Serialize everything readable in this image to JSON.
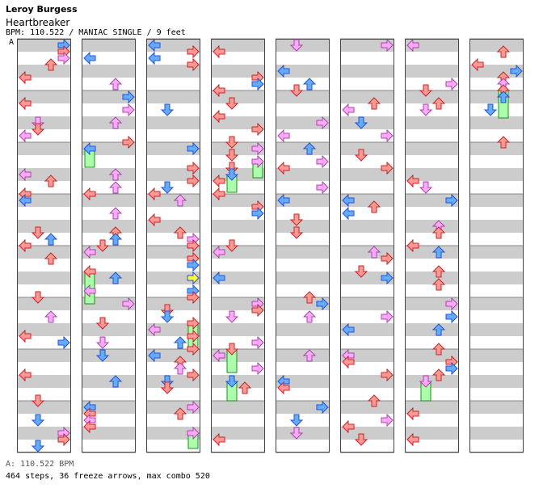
{
  "header": {
    "artist": "Leroy Burgess",
    "title": "Heartbreaker",
    "meta": "BPM: 110.522 / MANIAC SINGLE / 9 feet"
  },
  "chart_marker": "A",
  "footer": {
    "bpm": "A: 110.522 BPM",
    "stats": "464 steps, 36 freeze arrows, max combo 520"
  },
  "palette": {
    "red": "#ff9999",
    "blue": "#66aaff",
    "pink": "#ffaaff",
    "freeze_green": "#aaffaa",
    "green": "#33ee33",
    "yellow": "#ffff33",
    "band_gray": "#cccccc"
  },
  "chart_data": {
    "type": "step-chart",
    "lanes": [
      "left",
      "down",
      "up",
      "right"
    ],
    "columns": 8,
    "note_colors": [
      "red",
      "blue",
      "pink",
      "green",
      "yellow"
    ],
    "arrow_icons": [
      "left-arrow-icon",
      "down-arrow-icon",
      "up-arrow-icon",
      "right-arrow-icon"
    ]
  }
}
